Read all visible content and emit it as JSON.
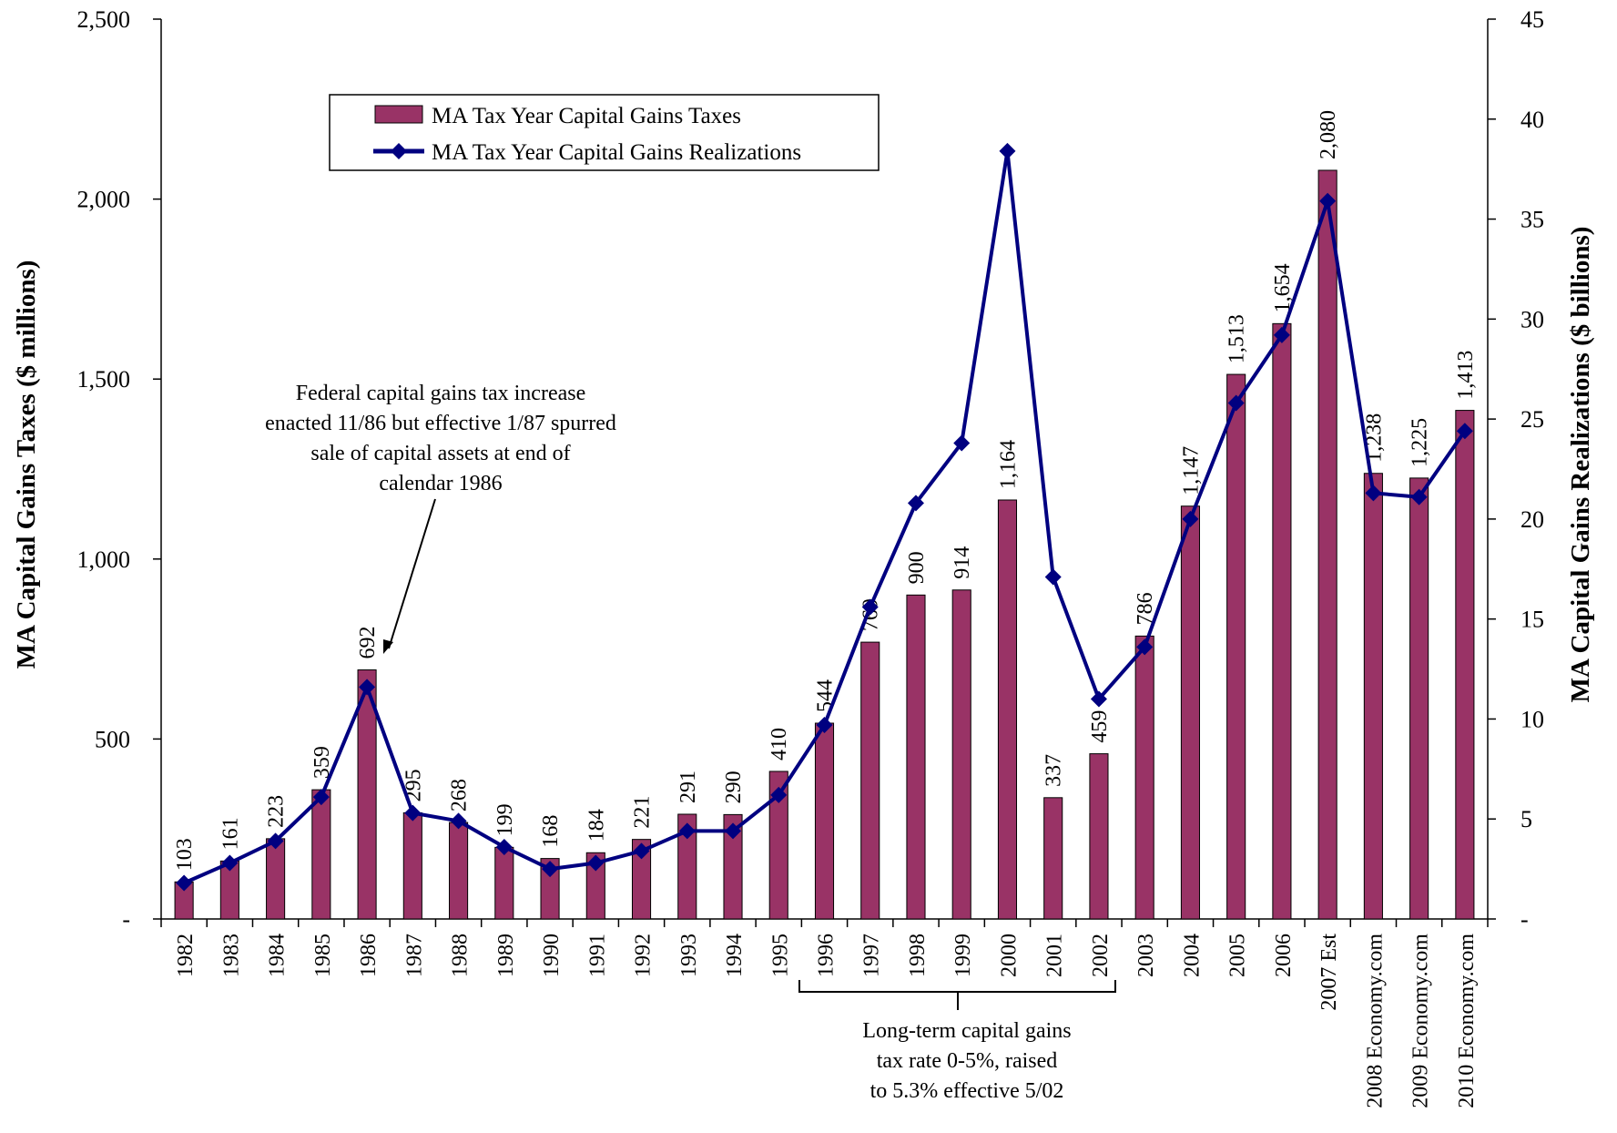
{
  "chart_data": {
    "type": "bar",
    "title": "",
    "categories": [
      "1982",
      "1983",
      "1984",
      "1985",
      "1986",
      "1987",
      "1988",
      "1989",
      "1990",
      "1991",
      "1992",
      "1993",
      "1994",
      "1995",
      "1996",
      "1997",
      "1998",
      "1999",
      "2000",
      "2001",
      "2002",
      "2003",
      "2004",
      "2005",
      "2006",
      "2007 Est",
      "2008 Economy.com",
      "2009 Economy.com",
      "2010 Economy.com"
    ],
    "series": [
      {
        "name": "MA Tax Year Capital Gains Taxes",
        "type": "bar",
        "axis": "left",
        "color": "#993366",
        "values": [
          103,
          161,
          223,
          359,
          692,
          295,
          268,
          199,
          168,
          184,
          221,
          291,
          290,
          410,
          544,
          769,
          900,
          914,
          1164,
          337,
          459,
          786,
          1147,
          1513,
          1654,
          2080,
          1238,
          1225,
          1413
        ],
        "labels": [
          "103",
          "161",
          "223",
          "359",
          "692",
          "295",
          "268",
          "199",
          "168",
          "184",
          "221",
          "291",
          "290",
          "410",
          "544",
          "769",
          "900",
          "914",
          "1,164",
          "337",
          "459",
          "786",
          "1,147",
          "1,513",
          "1,654",
          "2,080",
          "1,238",
          "1,225",
          "1,413"
        ]
      },
      {
        "name": "MA Tax Year Capital Gains Realizations",
        "type": "line",
        "axis": "right",
        "color": "#000080",
        "marker": "diamond",
        "values": [
          1.8,
          2.8,
          3.9,
          6.1,
          11.6,
          5.3,
          4.9,
          3.6,
          2.5,
          2.8,
          3.4,
          4.4,
          4.4,
          6.2,
          9.7,
          15.6,
          20.8,
          23.8,
          38.4,
          17.1,
          11.0,
          13.6,
          20.0,
          25.8,
          29.2,
          35.9,
          21.3,
          21.1,
          24.4
        ]
      }
    ],
    "ylabel": "MA Capital Gains Taxes ($ millions)",
    "y2label": "MA Capital Gains Realizations ($ billions)",
    "ylim": [
      0,
      2500
    ],
    "y2lim": [
      0,
      45
    ],
    "yticks": [
      "-",
      "500",
      "1,000",
      "1,500",
      "2,000",
      "2,500"
    ],
    "y2ticks": [
      "-",
      "5",
      "10",
      "15",
      "20",
      "25",
      "30",
      "35",
      "40",
      "45"
    ],
    "grid": false,
    "legend": "top-left",
    "annotations": {
      "federal": [
        "Federal capital gains tax increase",
        "enacted 11/86 but effective 1/87 spurred",
        "sale of capital assets at end of",
        "calendar 1986"
      ],
      "longterm": [
        "Long-term capital gains",
        "tax rate 0-5%, raised",
        "to 5.3% effective 5/02"
      ]
    }
  }
}
